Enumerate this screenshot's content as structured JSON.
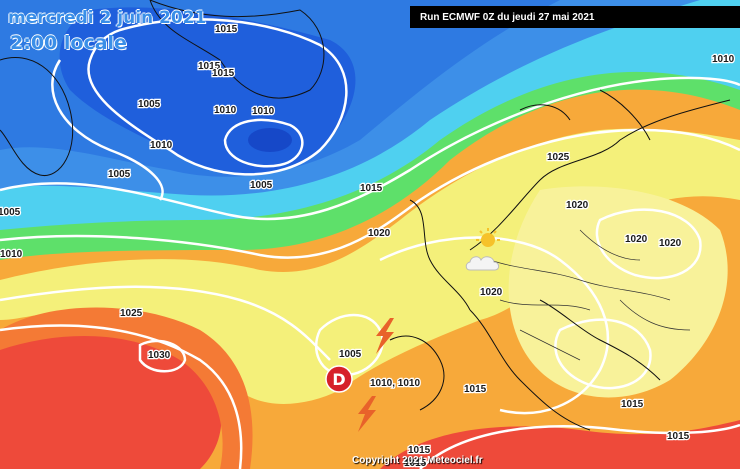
{
  "header": {
    "date": "mercredi 2 juin 2021",
    "time": "2:00 locale",
    "run": "Run ECMWF 0Z du jeudi 27 mai 2021"
  },
  "footer": {
    "copyright": "Copyright 2021 Meteociel.fr"
  },
  "pressure_labels": [
    "1015",
    "1015",
    "1015",
    "1005",
    "1010",
    "1010",
    "1010",
    "1005",
    "1005",
    "1005",
    "1010",
    "1015",
    "1020",
    "1025",
    "1020",
    "1020",
    "1020",
    "1020",
    "1025",
    "1030",
    "1005",
    "1010, 1010",
    "1015",
    "1015",
    "1015",
    "1010",
    "1015",
    "1015"
  ],
  "low_marker": "D",
  "colors": {
    "deep_blue": "#1f5fdc",
    "blue": "#3d8fe8",
    "cyan": "#4fd0f0",
    "green": "#5ee06a",
    "yellow": "#f4f07a",
    "orange": "#f7a93a",
    "red": "#ee4a3a",
    "isobar": "#ffffff"
  },
  "icons": [
    "sun-icon",
    "cloud-icon",
    "lightning-icon",
    "lightning-icon",
    "low-pressure-icon"
  ]
}
